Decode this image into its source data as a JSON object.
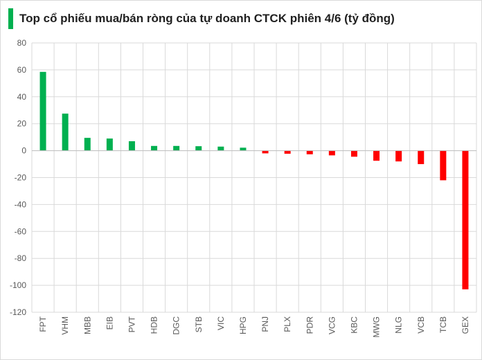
{
  "title": "Top cổ phiếu mua/bán ròng của tự doanh CTCK phiên 4/6 (tỷ đồng)",
  "colors": {
    "positive": "#00b050",
    "negative": "#ff0000",
    "title_accent": "#00b050",
    "gridline": "#d9d9d9",
    "axis": "#bfbfbf"
  },
  "chart_data": {
    "type": "bar",
    "title": "Top cổ phiếu mua/bán ròng của tự doanh CTCK phiên 4/6 (tỷ đồng)",
    "xlabel": "",
    "ylabel": "",
    "categories": [
      "FPT",
      "VHM",
      "MBB",
      "EIB",
      "PVT",
      "HDB",
      "DGC",
      "STB",
      "VIC",
      "HPG",
      "PNJ",
      "PLX",
      "PDR",
      "VCG",
      "KBC",
      "MWG",
      "NLG",
      "VCB",
      "TCB",
      "GEX"
    ],
    "values": [
      58.5,
      27.5,
      9.5,
      9,
      7,
      3.5,
      3.5,
      3.3,
      3,
      2.2,
      -2,
      -2.3,
      -2.7,
      -3.5,
      -4.5,
      -7.5,
      -8,
      -10,
      -22,
      -103
    ],
    "ylim": [
      -120,
      80
    ],
    "yticks": [
      80,
      60,
      40,
      20,
      0,
      -20,
      -40,
      -60,
      -80,
      -100,
      -120
    ],
    "grid": true,
    "legend": "none"
  }
}
